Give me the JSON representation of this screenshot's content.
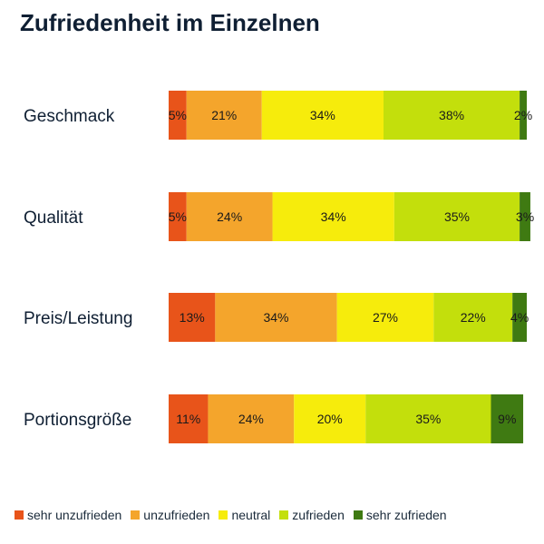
{
  "chart_data": {
    "type": "bar",
    "orientation": "horizontal",
    "stacked": true,
    "title": "Zufriedenheit im Einzelnen",
    "categories": [
      "Geschmack",
      "Qualität",
      "Preis/Leistung",
      "Portionsgröße"
    ],
    "series": [
      {
        "name": "sehr unzufrieden",
        "color": "#e8541a",
        "values": [
          5,
          5,
          13,
          11
        ],
        "labels": [
          "5%",
          "5%",
          "13%",
          "11%"
        ]
      },
      {
        "name": "unzufrieden",
        "color": "#f4a52c",
        "values": [
          21,
          24,
          34,
          24
        ],
        "labels": [
          "21%",
          "24%",
          "34%",
          "24%"
        ]
      },
      {
        "name": "neutral",
        "color": "#f6ec0c",
        "values": [
          34,
          34,
          27,
          20
        ],
        "labels": [
          "34%",
          "34%",
          "27%",
          "20%"
        ]
      },
      {
        "name": "zufrieden",
        "color": "#c3df0c",
        "values": [
          38,
          35,
          22,
          35
        ],
        "labels": [
          "38%",
          "35%",
          "22%",
          "35%"
        ]
      },
      {
        "name": "sehr zufrieden",
        "color": "#3f7a12",
        "values": [
          2,
          3,
          4,
          9
        ],
        "labels": [
          "2%",
          "3%",
          "4%",
          "9%"
        ]
      }
    ],
    "xlim": [
      0,
      100
    ],
    "grid": false,
    "legend_position": "bottom"
  }
}
